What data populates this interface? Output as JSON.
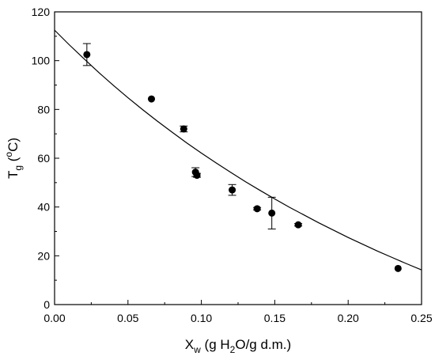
{
  "chart_data": {
    "type": "scatter",
    "title": "",
    "xlabel": {
      "main": "X",
      "sub": "w",
      "rest_before_sub": " (g H",
      "sub2": "2",
      "rest_after_sub": "O/g d.m.)"
    },
    "ylabel": {
      "main": "T",
      "sub": "g",
      "rest": " (",
      "sup": "o",
      "rest2": "C)"
    },
    "xlim": [
      0,
      0.25
    ],
    "ylim": [
      0,
      120
    ],
    "xticks": [
      "0.00",
      "0.05",
      "0.10",
      "0.15",
      "0.20",
      "0.25"
    ],
    "yticks": [
      "0",
      "20",
      "40",
      "60",
      "80",
      "100",
      "120"
    ],
    "grid": false,
    "legend": "none",
    "series": [
      {
        "kind": "points",
        "points": [
          {
            "x": 0.022,
            "y": 102.5,
            "err": 4.5
          },
          {
            "x": 0.066,
            "y": 84.3,
            "err": 0
          },
          {
            "x": 0.088,
            "y": 72.0,
            "err": 1.2
          },
          {
            "x": 0.096,
            "y": 54.3,
            "err": 1.8
          },
          {
            "x": 0.097,
            "y": 53.0,
            "err": 0.8
          },
          {
            "x": 0.121,
            "y": 47.0,
            "err": 2.2
          },
          {
            "x": 0.138,
            "y": 39.3,
            "err": 0.5
          },
          {
            "x": 0.148,
            "y": 37.5,
            "err": 6.5
          },
          {
            "x": 0.166,
            "y": 32.7,
            "err": 0.5
          },
          {
            "x": 0.234,
            "y": 14.8,
            "err": 0
          }
        ]
      },
      {
        "kind": "fit-curve",
        "points": [
          {
            "x": 0.0,
            "y": 112.5
          },
          {
            "x": 0.01,
            "y": 106.5
          },
          {
            "x": 0.02,
            "y": 100.8
          },
          {
            "x": 0.03,
            "y": 95.2
          },
          {
            "x": 0.04,
            "y": 89.9
          },
          {
            "x": 0.05,
            "y": 84.8
          },
          {
            "x": 0.06,
            "y": 79.9
          },
          {
            "x": 0.07,
            "y": 75.2
          },
          {
            "x": 0.08,
            "y": 70.7
          },
          {
            "x": 0.09,
            "y": 66.3
          },
          {
            "x": 0.1,
            "y": 62.1
          },
          {
            "x": 0.11,
            "y": 58.1
          },
          {
            "x": 0.12,
            "y": 54.2
          },
          {
            "x": 0.13,
            "y": 50.4
          },
          {
            "x": 0.14,
            "y": 46.8
          },
          {
            "x": 0.15,
            "y": 43.3
          },
          {
            "x": 0.16,
            "y": 39.9
          },
          {
            "x": 0.17,
            "y": 36.7
          },
          {
            "x": 0.18,
            "y": 33.5
          },
          {
            "x": 0.19,
            "y": 30.5
          },
          {
            "x": 0.2,
            "y": 27.5
          },
          {
            "x": 0.21,
            "y": 24.7
          },
          {
            "x": 0.22,
            "y": 21.9
          },
          {
            "x": 0.23,
            "y": 19.3
          },
          {
            "x": 0.24,
            "y": 16.7
          },
          {
            "x": 0.25,
            "y": 14.2
          }
        ]
      }
    ]
  }
}
